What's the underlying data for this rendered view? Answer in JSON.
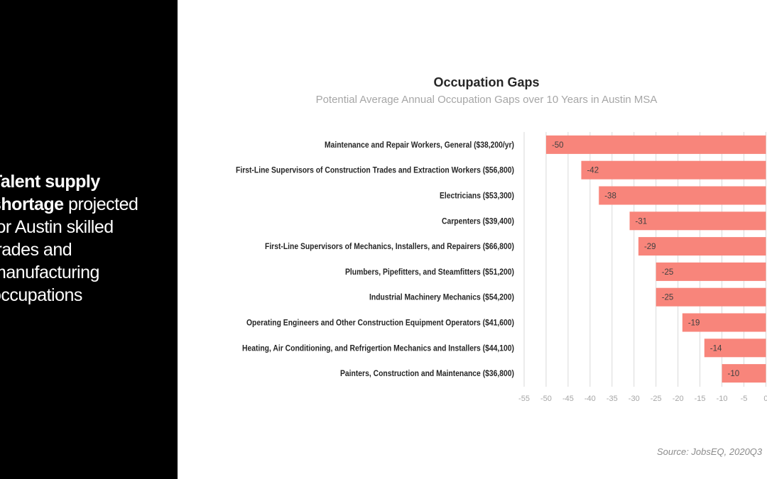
{
  "headline": {
    "line1_bold": "Talent supply",
    "line2_bold": "shortage",
    "line2_rest": " projected",
    "line3": "for Austin skilled",
    "line4": "trades and",
    "line5": "manufacturing",
    "line6": "occupations"
  },
  "source": "Source: JobsEQ, 2020Q3",
  "colors": {
    "bar": "#f8857b",
    "panel": "#000000",
    "grid": "#d9d9d9"
  },
  "chart_data": {
    "type": "bar",
    "orientation": "horizontal",
    "title": "Occupation Gaps",
    "subtitle": "Potential Average Annual Occupation Gaps over 10 Years in Austin MSA",
    "categories": [
      "Maintenance and Repair Workers, General ($38,200/yr)",
      "First-Line Supervisors of Construction Trades and Extraction Workers ($56,800)",
      "Electricians ($53,300)",
      "Carpenters ($39,400)",
      "First-Line Supervisors of Mechanics, Installers, and Repairers ($66,800)",
      "Plumbers, Pipefitters, and Steamfitters ($51,200)",
      "Industrial Machinery Mechanics ($54,200)",
      "Operating Engineers and Other Construction Equipment Operators ($41,600)",
      "Heating, Air Conditioning, and Refrigertion Mechanics and Installers ($44,100)",
      "Painters, Construction and Maintenance ($36,800)"
    ],
    "values": [
      -50,
      -42,
      -38,
      -31,
      -29,
      -25,
      -25,
      -19,
      -14,
      -10
    ],
    "data_labels": [
      "-50",
      "-42",
      "-38",
      "-31",
      "-29",
      "-25",
      "-25",
      "-19",
      "-14",
      "-10"
    ],
    "xlim": [
      -55,
      0
    ],
    "x_ticks": [
      "-55",
      "-50",
      "-45",
      "-40",
      "-35",
      "-30",
      "-25",
      "-20",
      "-15",
      "-10",
      "-5",
      "0"
    ],
    "grid": "vertical",
    "legend": "none"
  }
}
